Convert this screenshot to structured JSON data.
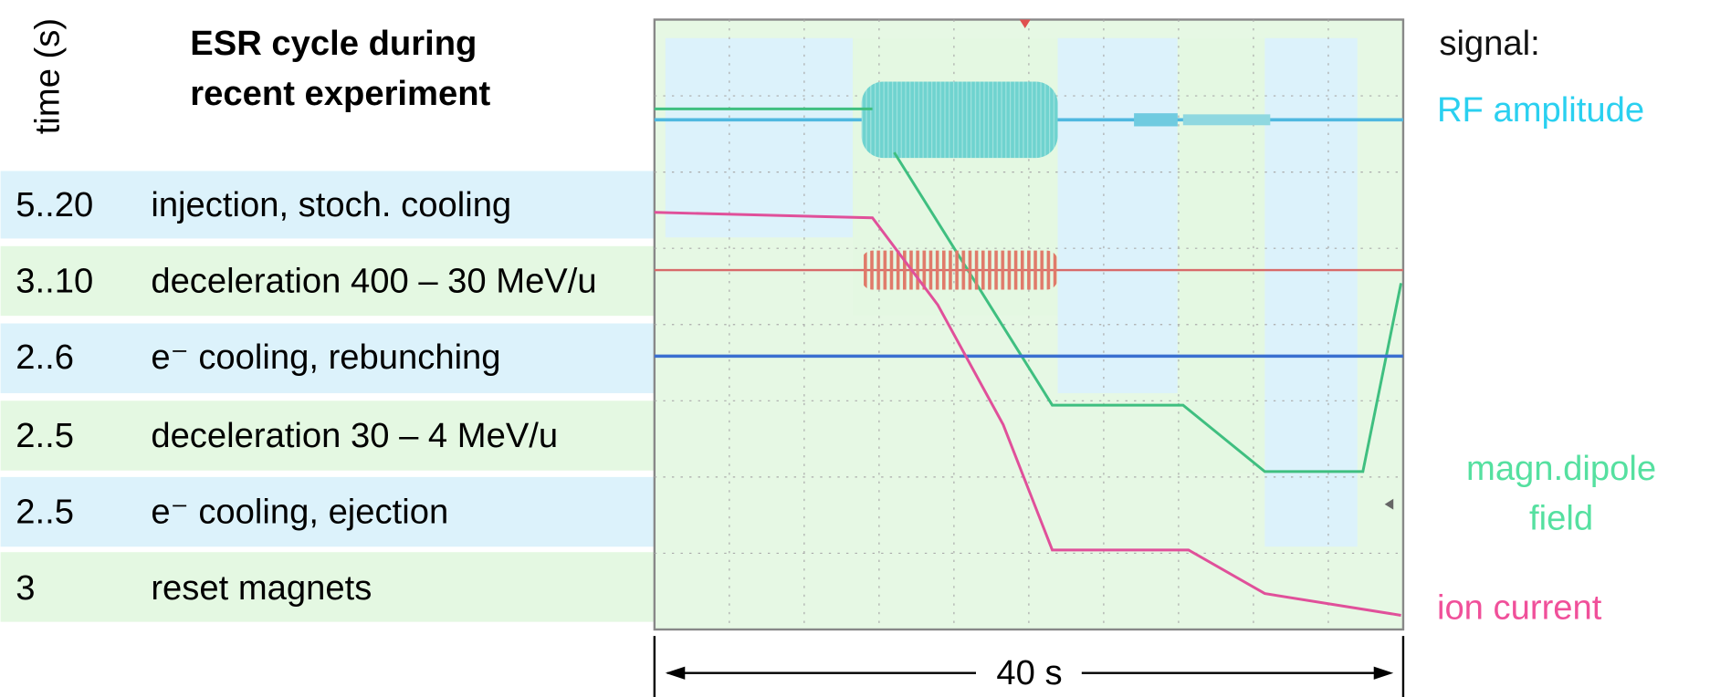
{
  "header": {
    "time_label": "time (s)",
    "title": [
      "ESR cycle during",
      "recent experiment"
    ]
  },
  "table": {
    "rows": [
      [
        "5..20",
        "injection, stoch. cooling"
      ],
      [
        "3..10",
        "deceleration 400 – 30 MeV/u"
      ],
      [
        "2..6",
        "e⁻ cooling, rebunching"
      ],
      [
        "2..5",
        "deceleration 30 – 4 MeV/u"
      ],
      [
        "2..5",
        "e⁻ cooling, ejection"
      ],
      [
        "3",
        "reset magnets"
      ]
    ]
  },
  "legend": {
    "heading": "signal:",
    "rf": "RF amplitude",
    "dipole": [
      "magn.dipole",
      "field"
    ],
    "ion": "ion current"
  },
  "scale_label": "40 s"
}
